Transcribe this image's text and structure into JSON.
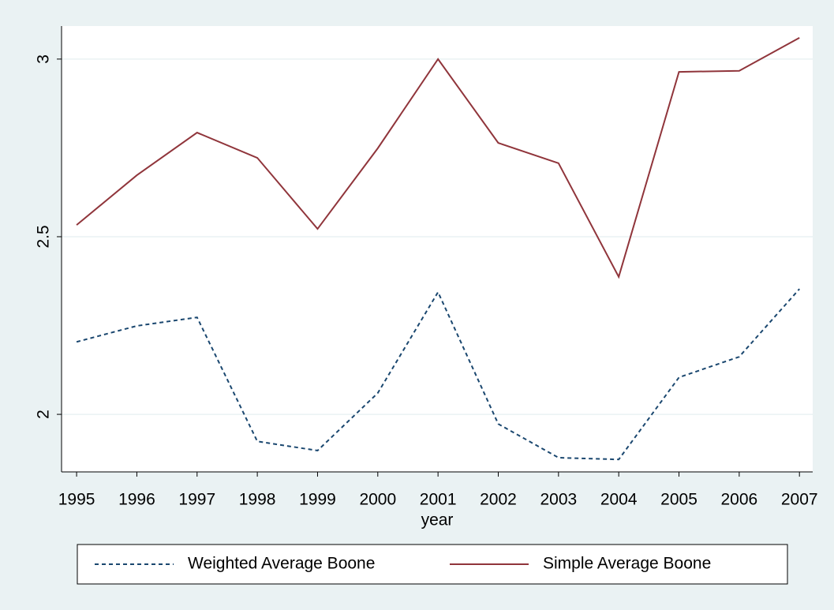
{
  "chart_data": {
    "type": "line",
    "x_label": "year",
    "x": [
      1995,
      1996,
      1997,
      1998,
      1999,
      2000,
      2001,
      2002,
      2003,
      2004,
      2005,
      2006,
      2007
    ],
    "series": [
      {
        "name": "Weighted Average Boone",
        "color": "#1a476f",
        "dash": true,
        "values": [
          2.204,
          2.249,
          2.273,
          1.924,
          1.898,
          2.06,
          2.344,
          1.973,
          1.878,
          1.873,
          2.104,
          2.162,
          2.353
        ]
      },
      {
        "name": "Simple Average Boone",
        "color": "#90353b",
        "dash": false,
        "values": [
          2.533,
          2.673,
          2.793,
          2.722,
          2.522,
          2.749,
          3.0,
          2.764,
          2.707,
          2.387,
          2.964,
          2.967,
          3.06
        ]
      }
    ],
    "xlim": [
      1994.75,
      2007.22
    ],
    "xticks": [
      1995,
      1996,
      1997,
      1998,
      1999,
      2000,
      2001,
      2002,
      2003,
      2004,
      2005,
      2006,
      2007
    ],
    "ylim": [
      1.838,
      3.093
    ],
    "yticks": [
      2,
      2.5,
      3
    ],
    "grid": true,
    "legend": "bottom"
  }
}
